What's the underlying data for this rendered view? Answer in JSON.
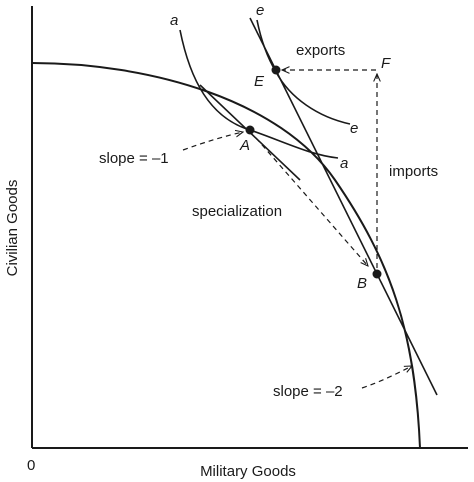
{
  "axes": {
    "x_label": "Military Goods",
    "y_label": "Civilian Goods",
    "origin": "0"
  },
  "points": {
    "A": "A",
    "B": "B",
    "E": "E",
    "F": "F"
  },
  "curve_labels": {
    "a_top": "a",
    "a_bottom": "a",
    "e_top": "e",
    "e_bottom": "e"
  },
  "annotations": {
    "exports": "exports",
    "imports": "imports",
    "specialization": "specialization",
    "slope_a": "slope = –1",
    "slope_b": "slope = –2"
  },
  "colors": {
    "ink": "#1a1a1a",
    "background": "#ffffff"
  }
}
